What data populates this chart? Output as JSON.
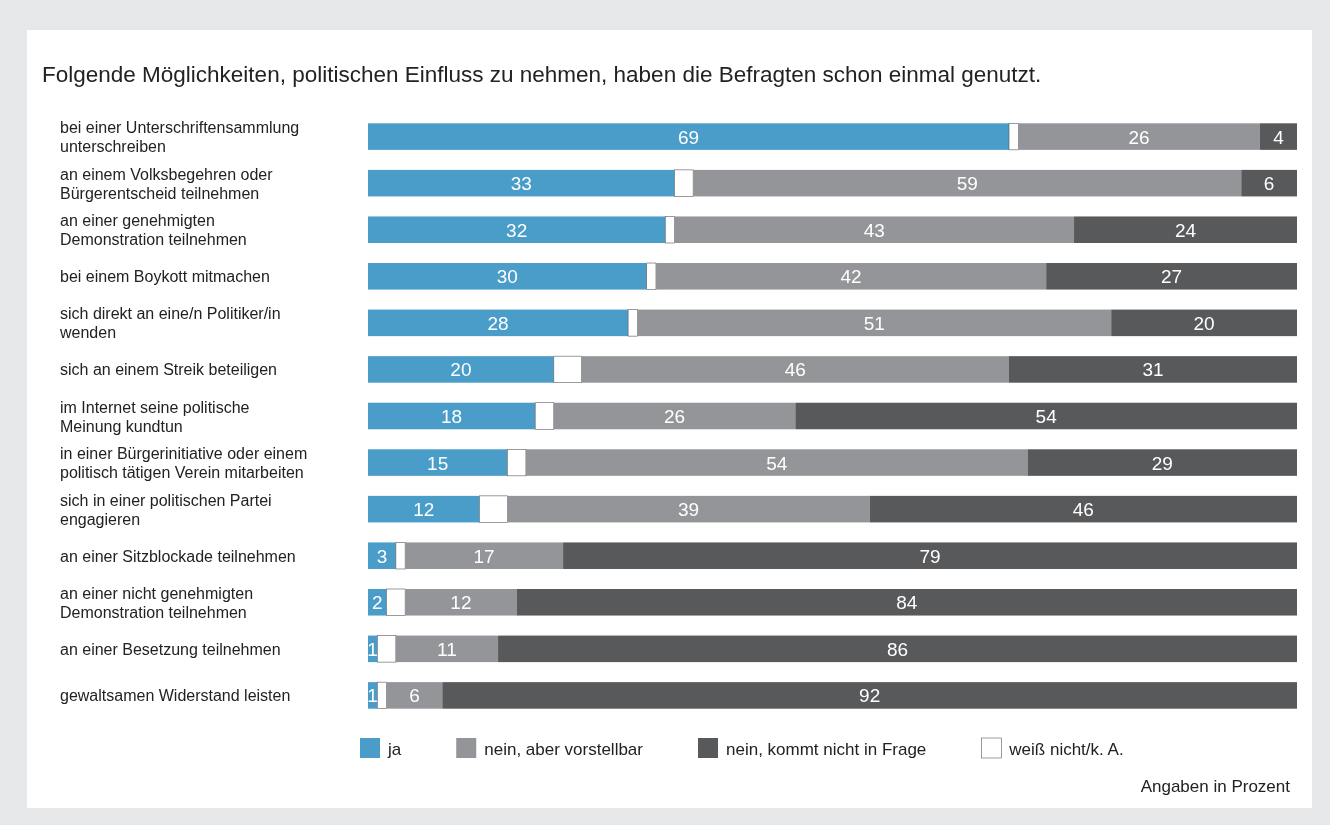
{
  "chart_data": {
    "type": "bar",
    "orientation": "horizontal",
    "stacked": true,
    "title": "Folgende Möglichkeiten, politischen Einfluss zu nehmen, haben die Befragten schon einmal genutzt.",
    "categories": [
      "bei einer Unterschriftensammlung unterschreiben",
      "an einem Volksbegehren oder Bürgerentscheid teilnehmen",
      "an einer genehmigten Demonstration teilnehmen",
      "bei einem Boykott mitmachen",
      "sich direkt an eine/n Politiker/in wenden",
      "sich an einem Streik beteiligen",
      "im Internet seine politische Meinung kundtun",
      "in einer Bürgerinitiative oder einem politisch tätigen Verein mitarbeiten",
      "sich in einer politischen Partei engagieren",
      "an einer Sitzblockade teilnehmen",
      "an einer nicht genehmigten Demonstration teilnehmen",
      "an einer Besetzung teilnehmen",
      "gewaltsamen Widerstand leisten"
    ],
    "xlim": [
      0,
      100
    ],
    "tick_labels": "y",
    "legend": "bottom",
    "series": [
      {
        "name": "ja",
        "color": "#4a9cc9",
        "values": [
          69,
          33,
          32,
          30,
          28,
          20,
          18,
          15,
          12,
          3,
          2,
          1,
          1
        ],
        "value_labels": [
          "69",
          "33",
          "32",
          "30",
          "28",
          "20",
          "18",
          "15",
          "12",
          "3",
          "2",
          "1",
          "1"
        ]
      },
      {
        "name": "weiß nicht/k. A.",
        "color": "#ffffff",
        "values": [
          1,
          2,
          1,
          1,
          1,
          3,
          2,
          2,
          3,
          1,
          2,
          2,
          1
        ],
        "value_labels": [
          null,
          null,
          null,
          null,
          null,
          null,
          null,
          null,
          null,
          null,
          null,
          null,
          null
        ]
      },
      {
        "name": "nein, aber vorstellbar",
        "color": "#939598",
        "values": [
          26,
          59,
          43,
          42,
          51,
          46,
          26,
          54,
          39,
          17,
          12,
          11,
          6
        ],
        "value_labels": [
          "26",
          "59",
          "43",
          "42",
          "51",
          "46",
          "26",
          "54",
          "39",
          "17",
          "12",
          "11",
          "6"
        ]
      },
      {
        "name": "nein, kommt nicht in Frage",
        "color": "#58595b",
        "values": [
          4,
          6,
          24,
          27,
          20,
          31,
          54,
          29,
          46,
          79,
          84,
          86,
          92
        ],
        "value_labels": [
          "4",
          "6",
          "24",
          "27",
          "20",
          "31",
          "54",
          "29",
          "46",
          "79",
          "84",
          "86",
          "92"
        ]
      }
    ],
    "annotations": [
      "Angaben in Prozent"
    ]
  }
}
